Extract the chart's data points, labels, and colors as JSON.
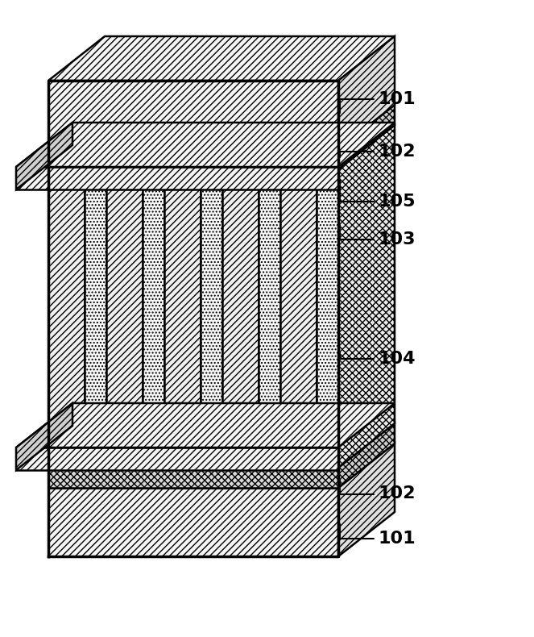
{
  "background_color": "#ffffff",
  "line_color": "#000000",
  "hatch_diagonal": "////",
  "hatch_cross": "xxxx",
  "hatch_dot": "....",
  "hatch_vertical": "||||",
  "label_101_top": "101",
  "label_102_top": "102",
  "label_103": "103",
  "label_104": "104",
  "label_105": "105",
  "label_102_bot": "102",
  "label_101_bot": "101",
  "label_fontsize": 16,
  "label_color": "#000000",
  "layer_colors": {
    "101_diagonal": "#ffffff",
    "102_cross": "#e8e8e8",
    "103_dotted": "#f0f0f0",
    "104_diagonal": "#ffffff",
    "105_grating": "#ffffff"
  }
}
